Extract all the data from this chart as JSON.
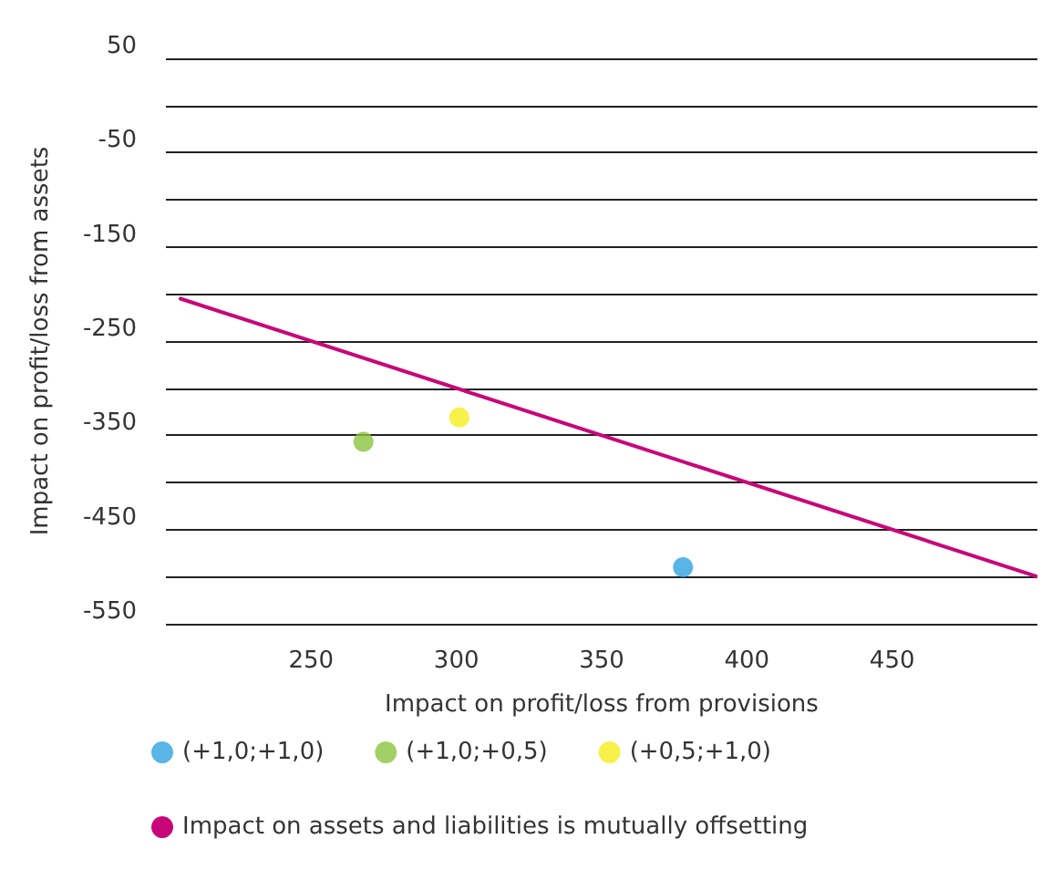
{
  "chart_data": {
    "type": "scatter",
    "xlabel": "Impact on profit/loss from provisions",
    "ylabel": "Impact on profit/loss from assets",
    "xlim": [
      200,
      500
    ],
    "xticks": [
      250,
      300,
      350,
      400,
      450
    ],
    "ylim": [
      -550,
      50
    ],
    "yticks": [
      -550,
      {
        "value": -500,
        "label": null
      },
      -450,
      {
        "value": -400,
        "label": null
      },
      -350,
      {
        "value": -300,
        "label": null
      },
      -250,
      {
        "value": -200,
        "label": null
      },
      -150,
      {
        "value": -100,
        "label": null
      },
      -50,
      {
        "value": 0,
        "label": null
      },
      50
    ],
    "grid": "y",
    "legend": "bottom",
    "marker": "circle",
    "series": [
      {
        "name": "(+1,0;+1,0)",
        "color": "#2ea3e0",
        "x": [
          378
        ],
        "values": [
          -490
        ]
      },
      {
        "name": "(+1,0;+0,5)",
        "color": "#8cc43f",
        "x": [
          268
        ],
        "values": [
          -357
        ]
      },
      {
        "name": "(+0,5;+1,0)",
        "color": "#f5ee1b",
        "x": [
          301
        ],
        "values": [
          -331
        ]
      },
      {
        "name": "Impact on assets and liabilities is mutually offsetting",
        "type": "line",
        "color": "#c8067a",
        "marker": "none",
        "line_style": "solid",
        "x": [
          205,
          500
        ],
        "values": [
          -205,
          -500
        ]
      }
    ]
  }
}
